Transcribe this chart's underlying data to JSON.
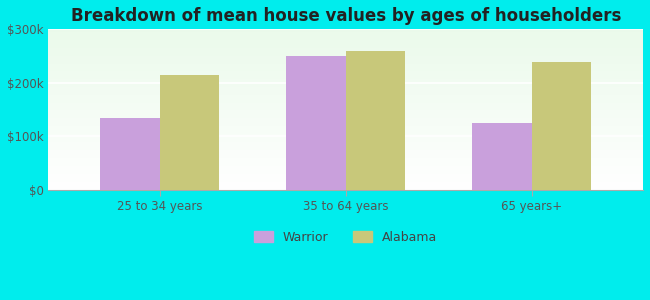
{
  "title": "Breakdown of mean house values by ages of householders",
  "categories": [
    "25 to 34 years",
    "35 to 64 years",
    "65 years+"
  ],
  "warrior_values": [
    135000,
    250000,
    125000
  ],
  "alabama_values": [
    215000,
    260000,
    238000
  ],
  "warrior_color": "#c9a0dc",
  "alabama_color": "#c8c87a",
  "background_outer": "#00eded",
  "background_inner_top": "#f0fdf0",
  "background_inner_bottom": "#d8f5d8",
  "ylim": [
    0,
    300000
  ],
  "yticks": [
    0,
    100000,
    200000,
    300000
  ],
  "ytick_labels": [
    "$0",
    "$100k",
    "$200k",
    "$300k"
  ],
  "bar_width": 0.32,
  "legend_labels": [
    "Warrior",
    "Alabama"
  ],
  "title_fontsize": 12,
  "tick_fontsize": 8.5,
  "legend_fontsize": 9
}
